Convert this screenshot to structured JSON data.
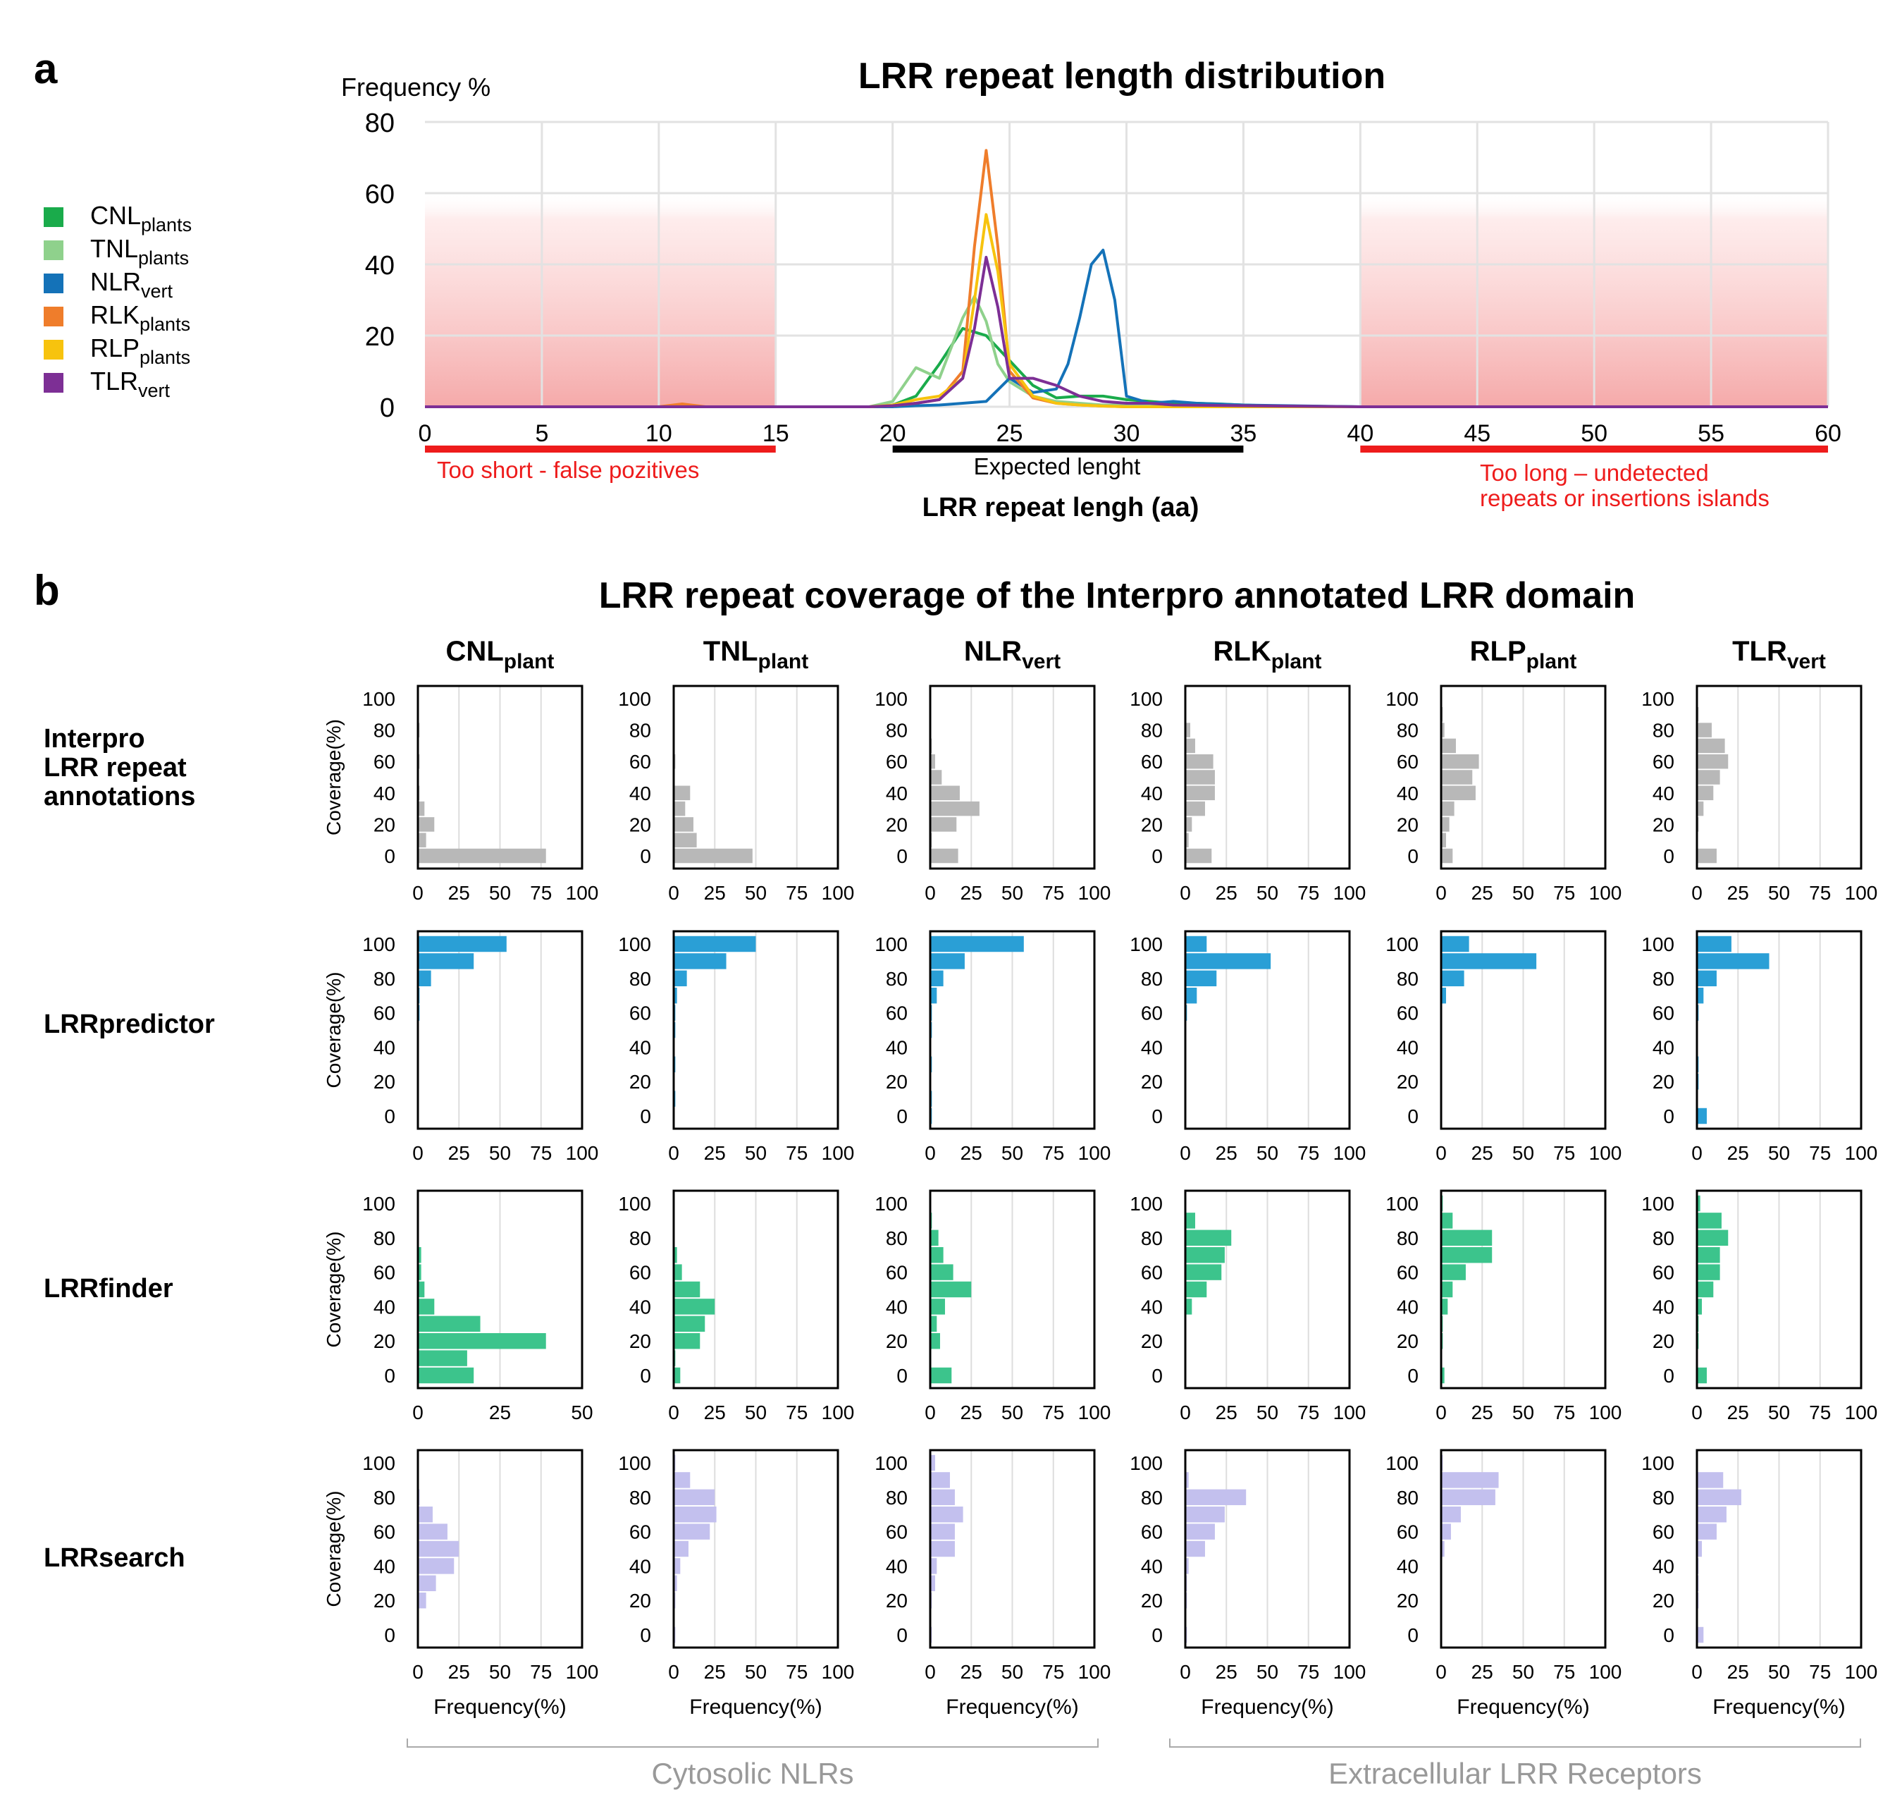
{
  "panel_a_letter": "a",
  "panel_b_letter": "b",
  "colors": {
    "CNL": "#1aab4b",
    "TNL": "#8fd18c",
    "NLR": "#1472b8",
    "RLK": "#ef7d2b",
    "RLP": "#f7c30e",
    "TLR": "#7d2f95",
    "interpro": "#b8b8b8",
    "lrrpredictor": "#2a9fd6",
    "lrrfinder": "#3cc48c",
    "lrrsearch": "#c3c0ee",
    "red": "#ee1c1c",
    "grey_text": "#999999"
  },
  "legend": [
    {
      "key": "CNL",
      "main": "CNL",
      "sub": "plants"
    },
    {
      "key": "TNL",
      "main": "TNL",
      "sub": "plants"
    },
    {
      "key": "NLR",
      "main": "NLR",
      "sub": "vert"
    },
    {
      "key": "RLK",
      "main": "RLK",
      "sub": "plants"
    },
    {
      "key": "RLP",
      "main": "RLP",
      "sub": "plants"
    },
    {
      "key": "TLR",
      "main": "TLR",
      "sub": "vert"
    }
  ],
  "annotations": {
    "too_short": "Too short - false pozitives",
    "expected": "Expected lenght",
    "too_long_1": "Too long – undetected",
    "too_long_2": "repeats or insertions islands"
  },
  "column_headers": [
    {
      "main": "CNL",
      "sub": "plant"
    },
    {
      "main": "TNL",
      "sub": "plant"
    },
    {
      "main": "NLR",
      "sub": "vert"
    },
    {
      "main": "RLK",
      "sub": "plant"
    },
    {
      "main": "RLP",
      "sub": "plant"
    },
    {
      "main": "TLR",
      "sub": "vert"
    }
  ],
  "row_labels": [
    [
      "Interpro",
      "LRR repeat",
      "annotations"
    ],
    [
      "LRRpredictor"
    ],
    [
      "LRRfinder"
    ],
    [
      "LRRsearch"
    ]
  ],
  "group_labels": {
    "cytosolic": "Cytosolic NLRs",
    "extracellular": "Extracellular LRR Receptors"
  },
  "chart_data": [
    {
      "type": "line",
      "title": "LRR repeat length distribution",
      "xlabel": "LRR repeat lengh (aa)",
      "ylabel": "Frequency %",
      "xlim": [
        0,
        60
      ],
      "ylim": [
        0,
        80
      ],
      "xticks": [
        0,
        5,
        10,
        15,
        20,
        25,
        30,
        35,
        40,
        45,
        50,
        55,
        60
      ],
      "yticks": [
        0,
        20,
        40,
        60,
        80
      ],
      "shaded_regions": [
        [
          0,
          15
        ],
        [
          40,
          60
        ]
      ],
      "expected_range": [
        20,
        35
      ],
      "series": [
        {
          "name": "CNL",
          "x": [
            0,
            19,
            20,
            21,
            22,
            23,
            24,
            25,
            26,
            27,
            28,
            29,
            30,
            31,
            32,
            33,
            34,
            35,
            36,
            40,
            60
          ],
          "y": [
            0,
            0,
            0.5,
            3,
            12,
            22,
            20,
            13,
            6,
            2.5,
            3,
            3,
            2,
            1.5,
            1,
            1,
            0.8,
            0.5,
            0.3,
            0,
            0
          ]
        },
        {
          "name": "TNL",
          "x": [
            0,
            19,
            20,
            21,
            22,
            23,
            23.5,
            24,
            24.5,
            25,
            26,
            27,
            28,
            29,
            30,
            31,
            32,
            40,
            60
          ],
          "y": [
            0,
            0,
            1.5,
            11,
            8,
            25,
            31,
            24,
            12,
            7,
            3,
            1.5,
            1,
            0.5,
            0.5,
            0.3,
            0.2,
            0,
            0
          ]
        },
        {
          "name": "NLR",
          "x": [
            0,
            20,
            21,
            22,
            23,
            24,
            25,
            26,
            27,
            27.5,
            28,
            28.5,
            29,
            29.5,
            30,
            31,
            32,
            33,
            35,
            40,
            60
          ],
          "y": [
            0,
            0,
            0.3,
            0.5,
            1,
            1.5,
            8,
            4,
            5,
            12,
            25,
            40,
            44,
            30,
            3,
            1,
            1.5,
            1,
            0.5,
            0,
            0
          ]
        },
        {
          "name": "RLK",
          "x": [
            0,
            10,
            11,
            12,
            19,
            20,
            21,
            22,
            23,
            23.5,
            24,
            24.5,
            25,
            26,
            27,
            28,
            29,
            30,
            40,
            60
          ],
          "y": [
            0,
            0,
            0.8,
            0,
            0,
            0.3,
            1,
            2,
            10,
            45,
            72,
            45,
            10,
            2.5,
            1,
            0.5,
            0.2,
            0,
            0,
            0
          ]
        },
        {
          "name": "RLP",
          "x": [
            0,
            19,
            20,
            21,
            22,
            23,
            23.5,
            24,
            24.5,
            25,
            26,
            27,
            28,
            29,
            30,
            40,
            60
          ],
          "y": [
            0,
            0,
            0.5,
            2,
            3,
            8,
            30,
            54,
            38,
            12,
            3,
            1,
            0.5,
            0.2,
            0,
            0,
            0
          ]
        },
        {
          "name": "TLR",
          "x": [
            0,
            19,
            20,
            21,
            22,
            23,
            23.5,
            24,
            24.5,
            25,
            26,
            27,
            28,
            29,
            30,
            31,
            32,
            35,
            40,
            60
          ],
          "y": [
            0,
            0,
            0.3,
            1,
            2,
            8,
            22,
            42,
            28,
            8,
            8,
            6,
            3,
            1.5,
            1,
            1,
            0.5,
            0.3,
            0,
            0
          ]
        }
      ]
    },
    {
      "type": "bar",
      "orientation": "horizontal",
      "title": "LRR repeat coverage of the Interpro annotated LRR domain",
      "ylabel": "Coverage(%)",
      "xlabel": "Frequency(%)",
      "bins": [
        0,
        10,
        20,
        30,
        40,
        50,
        60,
        70,
        80,
        90,
        100
      ],
      "yticks": [
        0,
        20,
        40,
        60,
        80,
        100
      ],
      "rows": [
        "Interpro",
        "LRRpredictor",
        "LRRfinder",
        "LRRsearch"
      ],
      "columns": [
        "CNL_plant",
        "TNL_plant",
        "NLR_vert",
        "RLK_plant",
        "RLP_plant",
        "TLR_vert"
      ],
      "panels": [
        [
          {
            "xmax": 100,
            "xticks": [
              0,
              25,
              50,
              75,
              100
            ],
            "values": [
              78,
              5,
              10,
              4,
              1,
              0,
              1,
              0,
              1,
              0,
              0
            ]
          },
          {
            "xmax": 100,
            "xticks": [
              0,
              25,
              50,
              75,
              100
            ],
            "values": [
              48,
              14,
              12,
              7,
              10,
              0,
              1,
              0,
              0,
              0,
              0
            ]
          },
          {
            "xmax": 100,
            "xticks": [
              0,
              25,
              50,
              75,
              100
            ],
            "values": [
              17,
              1,
              16,
              30,
              18,
              7,
              3,
              1,
              0,
              0,
              0
            ]
          },
          {
            "xmax": 100,
            "xticks": [
              0,
              25,
              50,
              75,
              100
            ],
            "values": [
              16,
              2,
              4,
              12,
              18,
              18,
              17,
              6,
              3,
              0,
              0
            ]
          },
          {
            "xmax": 100,
            "xticks": [
              0,
              25,
              50,
              75,
              100
            ],
            "values": [
              7,
              3,
              5,
              8,
              21,
              19,
              23,
              9,
              2,
              1,
              0
            ]
          },
          {
            "xmax": 100,
            "xticks": [
              0,
              25,
              50,
              75,
              100
            ],
            "values": [
              12,
              0,
              1,
              4,
              10,
              14,
              19,
              17,
              9,
              1,
              0
            ]
          }
        ],
        [
          {
            "xmax": 100,
            "xticks": [
              0,
              25,
              50,
              75,
              100
            ],
            "values": [
              0,
              0,
              0,
              0,
              0,
              0,
              1,
              1,
              8,
              34,
              54
            ]
          },
          {
            "xmax": 100,
            "xticks": [
              0,
              25,
              50,
              75,
              100
            ],
            "values": [
              0,
              1,
              0,
              1,
              0,
              1,
              1,
              2,
              8,
              32,
              50
            ]
          },
          {
            "xmax": 100,
            "xticks": [
              0,
              25,
              50,
              75,
              100
            ],
            "values": [
              1,
              1,
              0,
              1,
              0,
              1,
              1,
              4,
              8,
              21,
              57
            ]
          },
          {
            "xmax": 100,
            "xticks": [
              0,
              25,
              50,
              75,
              100
            ],
            "values": [
              0,
              0,
              0,
              0,
              0,
              0,
              1,
              7,
              19,
              52,
              13
            ]
          },
          {
            "xmax": 100,
            "xticks": [
              0,
              25,
              50,
              75,
              100
            ],
            "values": [
              0,
              0,
              0,
              0,
              0,
              0,
              0,
              3,
              14,
              58,
              17
            ]
          },
          {
            "xmax": 100,
            "xticks": [
              0,
              25,
              50,
              75,
              100
            ],
            "values": [
              6,
              0,
              1,
              1,
              0,
              0,
              1,
              4,
              12,
              44,
              21
            ]
          }
        ],
        [
          {
            "xmax": 50,
            "xticks": [
              0,
              25,
              50
            ],
            "values": [
              17,
              15,
              39,
              19,
              5,
              2,
              1,
              1,
              0,
              0,
              0
            ]
          },
          {
            "xmax": 100,
            "xticks": [
              0,
              25,
              50,
              75,
              100
            ],
            "values": [
              4,
              1,
              16,
              19,
              25,
              16,
              5,
              2,
              0,
              0,
              0
            ]
          },
          {
            "xmax": 100,
            "xticks": [
              0,
              25,
              50,
              75,
              100
            ],
            "values": [
              13,
              0,
              6,
              4,
              9,
              25,
              14,
              8,
              5,
              1,
              0
            ]
          },
          {
            "xmax": 100,
            "xticks": [
              0,
              25,
              50,
              75,
              100
            ],
            "values": [
              0,
              0,
              0,
              0,
              4,
              13,
              22,
              24,
              28,
              6,
              0
            ]
          },
          {
            "xmax": 100,
            "xticks": [
              0,
              25,
              50,
              75,
              100
            ],
            "values": [
              2,
              0,
              1,
              1,
              4,
              7,
              15,
              31,
              31,
              7,
              1
            ]
          },
          {
            "xmax": 100,
            "xticks": [
              0,
              25,
              50,
              75,
              100
            ],
            "values": [
              6,
              0,
              1,
              1,
              3,
              10,
              14,
              14,
              19,
              15,
              2
            ]
          }
        ],
        [
          {
            "xmax": 100,
            "xticks": [
              0,
              25,
              50,
              75,
              100
            ],
            "values": [
              0,
              0,
              5,
              11,
              22,
              25,
              18,
              9,
              1,
              0,
              0
            ]
          },
          {
            "xmax": 100,
            "xticks": [
              0,
              25,
              50,
              75,
              100
            ],
            "values": [
              1,
              0,
              1,
              2,
              4,
              9,
              22,
              26,
              25,
              10,
              1
            ]
          },
          {
            "xmax": 100,
            "xticks": [
              0,
              25,
              50,
              75,
              100
            ],
            "values": [
              1,
              0,
              1,
              3,
              4,
              15,
              15,
              20,
              15,
              12,
              3
            ]
          },
          {
            "xmax": 100,
            "xticks": [
              0,
              25,
              50,
              75,
              100
            ],
            "values": [
              1,
              0,
              1,
              1,
              2,
              12,
              18,
              24,
              37,
              2,
              0
            ]
          },
          {
            "xmax": 100,
            "xticks": [
              0,
              25,
              50,
              75,
              100
            ],
            "values": [
              0,
              0,
              0,
              0,
              0,
              2,
              6,
              12,
              33,
              35,
              1
            ]
          },
          {
            "xmax": 100,
            "xticks": [
              0,
              25,
              50,
              75,
              100
            ],
            "values": [
              4,
              0,
              1,
              1,
              1,
              3,
              12,
              18,
              27,
              16,
              0
            ]
          }
        ]
      ]
    }
  ]
}
